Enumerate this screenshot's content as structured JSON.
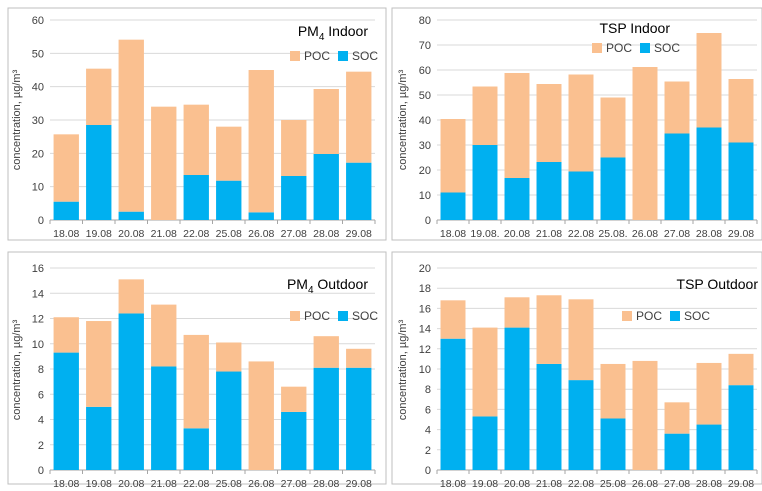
{
  "colors": {
    "poc": "#FAC090",
    "soc": "#00B0F0",
    "grid": "#D9D9D9",
    "axis": "#A6A6A6",
    "text": "#404040",
    "frame": "#BFBFBF"
  },
  "chart_data": [
    {
      "type": "bar",
      "stacked": true,
      "title_main": "PM",
      "title_sub": "4",
      "title_rest": " Indoor",
      "ylabel": "concentration, µg/m³",
      "ylim": [
        0,
        60
      ],
      "yticks": [
        "0",
        "10",
        "20",
        "30",
        "40",
        "50",
        "60"
      ],
      "categories": [
        "18.08",
        "19.08",
        "20.08",
        "21.08",
        "22.08",
        "25.08",
        "26.08",
        "27.08",
        "28.08",
        "29.08"
      ],
      "legend": "top-right",
      "series": [
        {
          "name": "SOC",
          "values": [
            5.5,
            28.5,
            2.5,
            0,
            13.5,
            11.8,
            2.3,
            13.2,
            19.8,
            17.2
          ]
        },
        {
          "name": "POC",
          "values": [
            20.2,
            16.9,
            51.6,
            34.0,
            21.1,
            16.2,
            42.7,
            16.8,
            19.5,
            27.3
          ]
        }
      ]
    },
    {
      "type": "bar",
      "stacked": true,
      "title_main": "TSP Indoor",
      "title_sub": "",
      "title_rest": "",
      "ylabel": "concentration, µg/m³",
      "ylim": [
        0,
        80
      ],
      "yticks": [
        "0",
        "10",
        "20",
        "30",
        "40",
        "50",
        "60",
        "70",
        "80"
      ],
      "categories": [
        "18.08",
        "19.08.",
        "20.08",
        "21.08",
        "22.08",
        "25.08.",
        "26.08",
        "27.08",
        "28.08",
        "29.08"
      ],
      "legend": "top-right",
      "series": [
        {
          "name": "SOC",
          "values": [
            11.0,
            30.0,
            16.8,
            23.2,
            19.4,
            25.0,
            0,
            34.6,
            37.0,
            31.0
          ]
        },
        {
          "name": "POC",
          "values": [
            29.4,
            23.4,
            42.0,
            31.2,
            38.8,
            24.0,
            61.2,
            20.8,
            37.8,
            25.4
          ]
        }
      ]
    },
    {
      "type": "bar",
      "stacked": true,
      "title_main": "PM",
      "title_sub": "4",
      "title_rest": " Outdoor",
      "ylabel": "concentration, µg/m³",
      "ylim": [
        0,
        16
      ],
      "yticks": [
        "0",
        "2",
        "4",
        "6",
        "8",
        "10",
        "12",
        "14",
        "16"
      ],
      "categories": [
        "18.08",
        "19.08",
        "20.08",
        "21.08",
        "22.08",
        "25.08",
        "26.08",
        "27.08",
        "28.08",
        "29.08"
      ],
      "legend": "right",
      "series": [
        {
          "name": "SOC",
          "values": [
            9.3,
            5.0,
            12.4,
            8.2,
            3.3,
            7.8,
            0,
            4.6,
            8.1,
            8.1
          ]
        },
        {
          "name": "POC",
          "values": [
            2.8,
            6.8,
            2.7,
            4.9,
            7.4,
            2.3,
            8.6,
            2.0,
            2.5,
            1.5
          ]
        }
      ]
    },
    {
      "type": "bar",
      "stacked": true,
      "title_main": "TSP Outdoor",
      "title_sub": "",
      "title_rest": "",
      "ylabel": "concentration, µg/m³",
      "ylim": [
        0,
        20
      ],
      "yticks": [
        "0",
        "2",
        "4",
        "6",
        "8",
        "10",
        "12",
        "14",
        "16",
        "18",
        "20"
      ],
      "categories": [
        "18.08",
        "19.08",
        "20.08",
        "21.08",
        "22.08",
        "25.08",
        "26.08",
        "27.08",
        "28.08",
        "29.08"
      ],
      "legend": "right",
      "series": [
        {
          "name": "SOC",
          "values": [
            13.0,
            5.3,
            14.1,
            10.5,
            8.9,
            5.1,
            0,
            3.6,
            4.5,
            8.4
          ]
        },
        {
          "name": "POC",
          "values": [
            3.8,
            8.8,
            3.0,
            6.8,
            8.0,
            5.4,
            10.8,
            3.1,
            6.1,
            3.1
          ]
        }
      ]
    }
  ]
}
